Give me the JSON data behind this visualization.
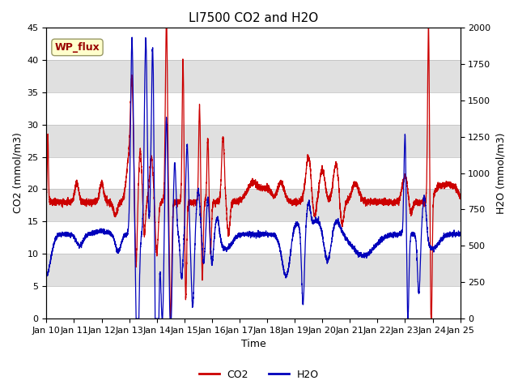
{
  "title": "LI7500 CO2 and H2O",
  "xlabel": "Time",
  "ylabel_left": "CO2 (mmol/m3)",
  "ylabel_right": "H2O (mmol/m3)",
  "annotation_text": "WP_flux",
  "annotation_box_color": "#ffffcc",
  "annotation_text_color": "#990000",
  "annotation_border_color": "#999966",
  "co2_color": "#cc0000",
  "h2o_color": "#0000bb",
  "co2_label": "CO2",
  "h2o_label": "H2O",
  "ylim_left": [
    0,
    45
  ],
  "ylim_right": [
    0,
    2000
  ],
  "xlim": [
    0,
    15
  ],
  "xtick_labels": [
    "Jan 10",
    "Jan 11",
    "Jan 12",
    "Jan 13",
    "Jan 14",
    "Jan 15",
    "Jan 16",
    "Jan 17",
    "Jan 18",
    "Jan 19",
    "Jan 20",
    "Jan 21",
    "Jan 22",
    "Jan 23",
    "Jan 24",
    "Jan 25"
  ],
  "bg_color": "#ffffff",
  "grid_color": "#bbbbbb",
  "alt_band_color": "#e0e0e0",
  "legend_co2_color": "#cc0000",
  "legend_h2o_color": "#0000bb",
  "title_fontsize": 11,
  "axis_label_fontsize": 9,
  "tick_fontsize": 8,
  "legend_fontsize": 9
}
